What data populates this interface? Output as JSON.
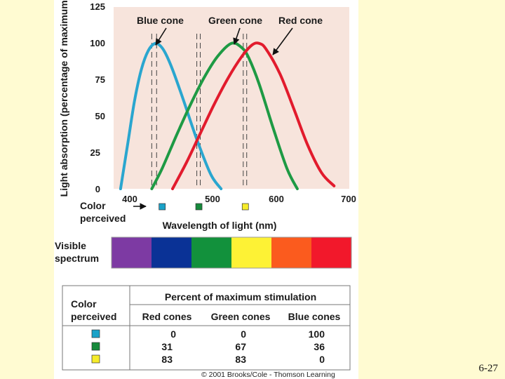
{
  "slide": {
    "page_number": "6-27",
    "copyright": "© 2001 Brooks/Cole - Thomson Learning"
  },
  "colors": {
    "background": "#fffbd2",
    "plot_bg": "#f7e4dc",
    "blue_cone": "#2aa6cf",
    "green_cone": "#1e9a44",
    "red_cone": "#e21b2d",
    "swatch_blue": "#1aa2c8",
    "swatch_green": "#168a3c",
    "swatch_yellow": "#f6ec2a"
  },
  "chart_data": {
    "type": "line",
    "title": "",
    "xlabel": "Wavelength of light (nm)",
    "ylabel": "Light absorption (percentage of maximum)",
    "xlim": [
      360,
      700
    ],
    "ylim": [
      0,
      125
    ],
    "x_ticks": [
      "400",
      "500",
      "600",
      "700"
    ],
    "y_ticks": [
      "0",
      "25",
      "50",
      "75",
      "100",
      "125"
    ],
    "series": [
      {
        "name": "Blue cone",
        "color_key": "blue_cone",
        "x": [
          370,
          380,
          390,
          400,
          410,
          420,
          428,
          435,
          445,
          460,
          480,
          500,
          515
        ],
        "y": [
          0,
          30,
          60,
          82,
          95,
          100,
          98,
          93,
          82,
          62,
          34,
          10,
          0
        ]
      },
      {
        "name": "Green cone",
        "color_key": "green_cone",
        "x": [
          415,
          430,
          450,
          470,
          490,
          510,
          530,
          545,
          555,
          570,
          590,
          610,
          625
        ],
        "y": [
          0,
          14,
          36,
          57,
          76,
          91,
          100,
          97,
          90,
          72,
          42,
          14,
          0
        ]
      },
      {
        "name": "Red cone",
        "color_key": "red_cone",
        "x": [
          445,
          465,
          485,
          505,
          525,
          545,
          560,
          570,
          580,
          600,
          620,
          640,
          660,
          678
        ],
        "y": [
          0,
          18,
          38,
          58,
          76,
          91,
          99,
          100,
          96,
          79,
          55,
          30,
          11,
          2
        ]
      }
    ],
    "curve_labels": [
      "Blue cone",
      "Green cone",
      "Red cone"
    ],
    "marker_lines_nm": [
      [
        415,
        422
      ],
      [
        480,
        485
      ],
      [
        547,
        552
      ]
    ],
    "color_perceived_label": "Color perceived",
    "color_perceived_markers": [
      {
        "nm": 430,
        "color_key": "swatch_blue"
      },
      {
        "nm": 483,
        "color_key": "swatch_green"
      },
      {
        "nm": 550,
        "color_key": "swatch_yellow"
      }
    ],
    "visible_spectrum_label": "Visible spectrum",
    "visible_spectrum": [
      "#7d3aa3",
      "#0a3296",
      "#12913c",
      "#fdf235",
      "#fb5b1e",
      "#f2182b"
    ]
  },
  "table": {
    "row_header": "Color perceived",
    "group_header": "Percent of maximum stimulation",
    "columns": [
      "Red cones",
      "Green cones",
      "Blue cones"
    ],
    "rows": [
      {
        "color_key": "swatch_blue",
        "values": [
          "0",
          "0",
          "100"
        ]
      },
      {
        "color_key": "swatch_green",
        "values": [
          "31",
          "67",
          "36"
        ]
      },
      {
        "color_key": "swatch_yellow",
        "values": [
          "83",
          "83",
          "0"
        ]
      }
    ]
  }
}
